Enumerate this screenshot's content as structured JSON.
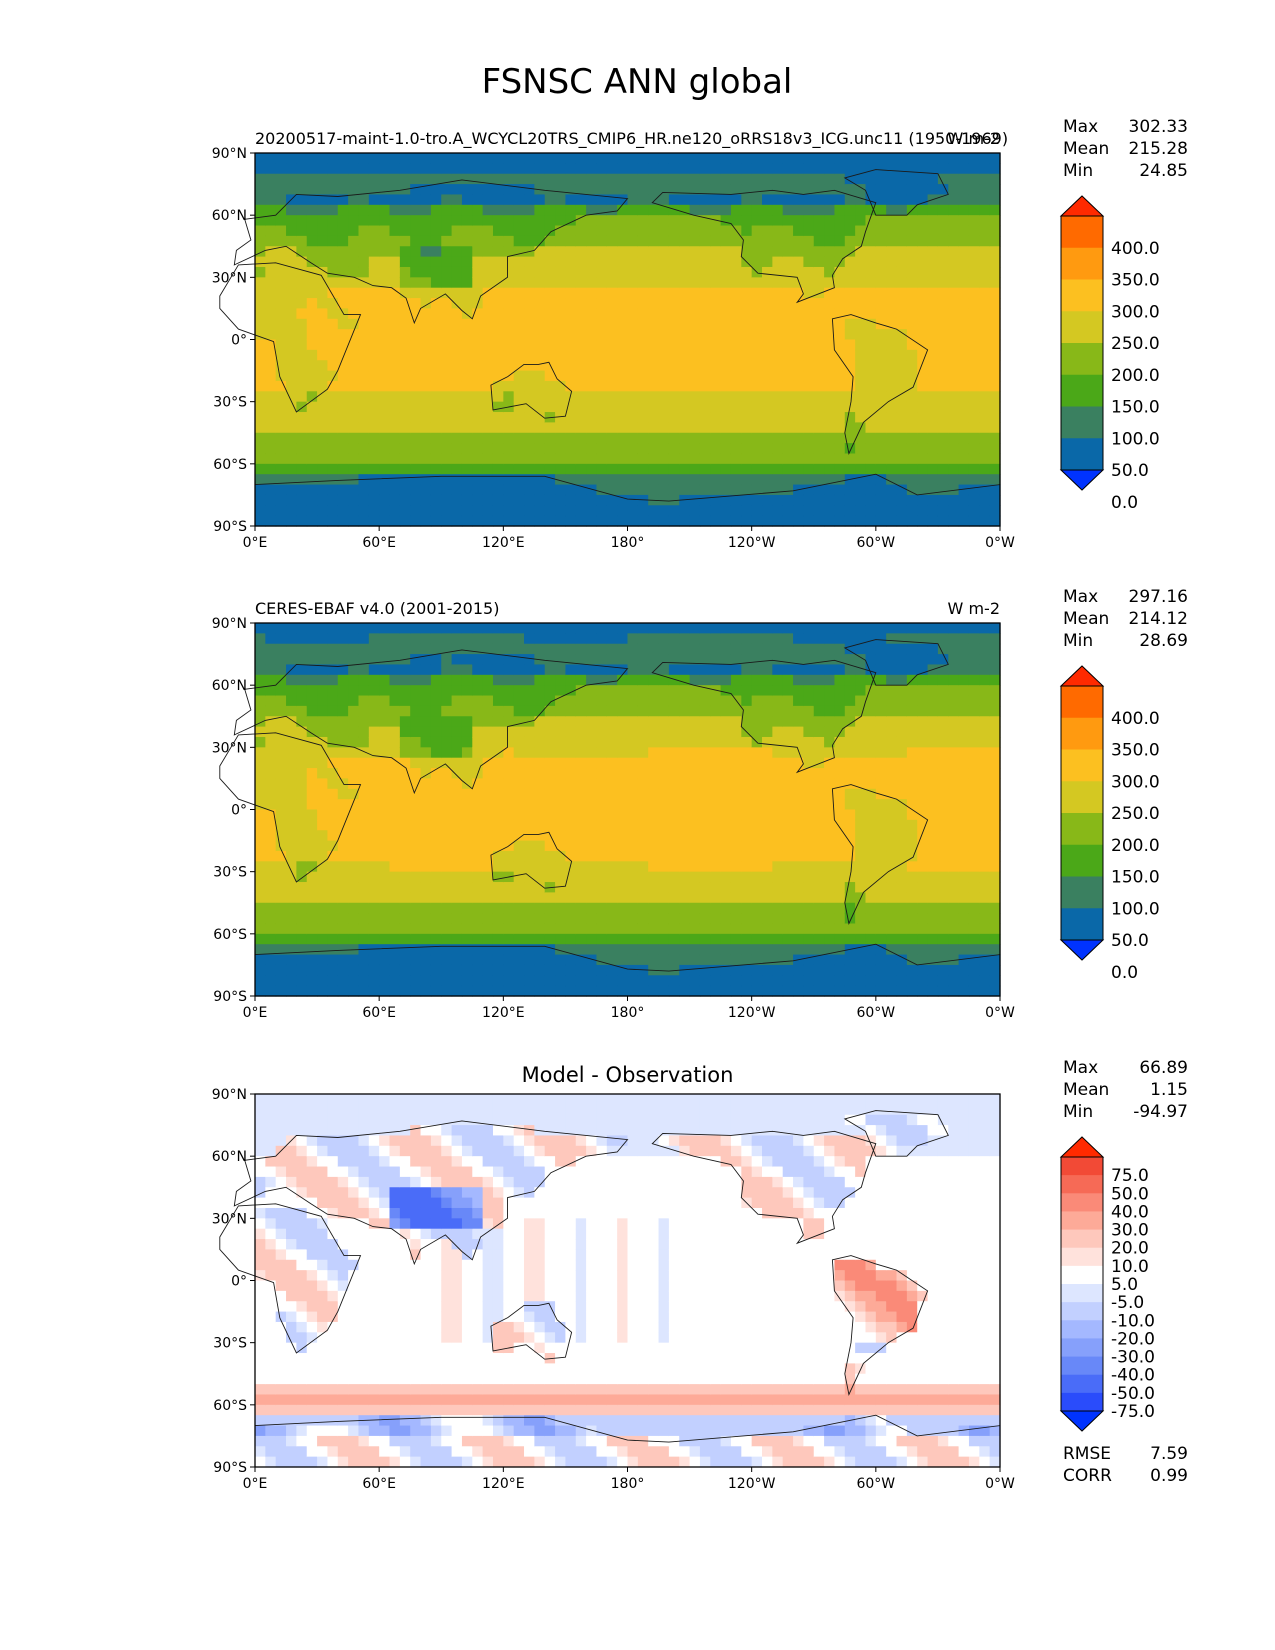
{
  "figure": {
    "title": "FSNSC ANN global"
  },
  "chart_data": [
    {
      "type": "heatmap",
      "title_left": "20200517-maint-1.0-tro.A_WCYCL20TRS_CMIP6_HR.ne120_oRRS18v3_ICG.unc11 (1950-1969)",
      "title_right": "W m-2",
      "title_center": "",
      "stats": [
        {
          "label": "Max",
          "value": "302.33"
        },
        {
          "label": "Mean",
          "value": "215.28"
        },
        {
          "label": "Min",
          "value": "24.85"
        }
      ],
      "colorbar": {
        "ticks": [
          "400.0",
          "350.0",
          "300.0",
          "250.0",
          "200.0",
          "150.0",
          "100.0",
          "50.0",
          "0.0"
        ],
        "colors": [
          "#ff2a00",
          "#ff6a00",
          "#ff9a10",
          "#fcc020",
          "#d4c822",
          "#88b818",
          "#4ba818",
          "#3a8060",
          "#0a68a8",
          "#0033ff"
        ]
      },
      "field": "model"
    },
    {
      "type": "heatmap",
      "title_left": "CERES-EBAF v4.0 (2001-2015)",
      "title_right": "W m-2",
      "title_center": "",
      "stats": [
        {
          "label": "Max",
          "value": "297.16"
        },
        {
          "label": "Mean",
          "value": "214.12"
        },
        {
          "label": "Min",
          "value": "28.69"
        }
      ],
      "colorbar": {
        "ticks": [
          "400.0",
          "350.0",
          "300.0",
          "250.0",
          "200.0",
          "150.0",
          "100.0",
          "50.0",
          "0.0"
        ],
        "colors": [
          "#ff2a00",
          "#ff6a00",
          "#ff9a10",
          "#fcc020",
          "#d4c822",
          "#88b818",
          "#4ba818",
          "#3a8060",
          "#0a68a8",
          "#0033ff"
        ]
      },
      "field": "obs"
    },
    {
      "type": "heatmap",
      "title_left": "",
      "title_right": "",
      "title_center": "Model - Observation",
      "stats": [
        {
          "label": "Max",
          "value": "66.89"
        },
        {
          "label": "Mean",
          "value": "1.15"
        },
        {
          "label": "Min",
          "value": "-94.97"
        }
      ],
      "extra_stats": [
        {
          "label": "RMSE",
          "value": "7.59"
        },
        {
          "label": "CORR",
          "value": "0.99"
        }
      ],
      "colorbar": {
        "ticks": [
          "75.0",
          "50.0",
          "40.0",
          "30.0",
          "20.0",
          "10.0",
          "5.0",
          "-5.0",
          "-10.0",
          "-20.0",
          "-30.0",
          "-40.0",
          "-50.0",
          "-75.0"
        ],
        "colors": [
          "#ff2a00",
          "#f24a36",
          "#f66a56",
          "#fa8a78",
          "#fdaa98",
          "#fec8bc",
          "#ffe2dc",
          "#ffffff",
          "#dde6ff",
          "#c2d0ff",
          "#a4b8ff",
          "#86a0fb",
          "#6888f8",
          "#4a6cf8",
          "#2a4cfb",
          "#0033ff"
        ]
      },
      "field": "diff"
    }
  ],
  "axes": {
    "lat_ticks": [
      "90°N",
      "60°N",
      "30°N",
      "0°",
      "30°S",
      "60°S",
      "90°S"
    ],
    "lon_ticks": [
      "0°E",
      "60°E",
      "120°E",
      "180°",
      "120°W",
      "60°W",
      "0°W"
    ]
  }
}
